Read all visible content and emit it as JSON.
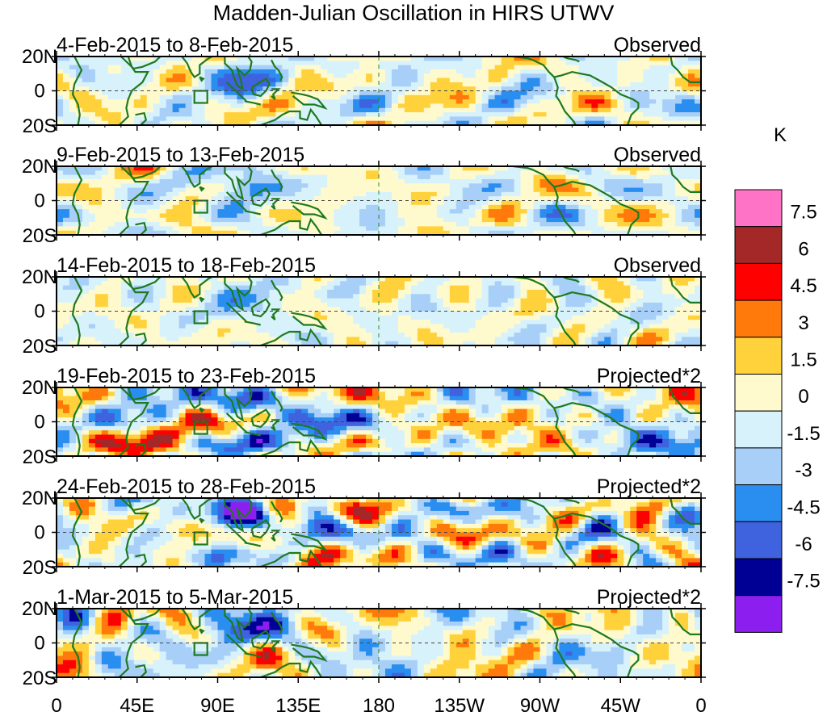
{
  "chart_data": {
    "type": "heatmap",
    "title": "Madden-Julian Oscillation in HIRS UTWV",
    "colorbar": {
      "units": "K",
      "levels": [
        "7.5",
        "6",
        "4.5",
        "3",
        "1.5",
        "0",
        "-1.5",
        "-3",
        "-4.5",
        "-6",
        "-7.5"
      ],
      "colors": [
        "#ff73c7",
        "#a52828",
        "#ff0000",
        "#ff7a0a",
        "#ffd23c",
        "#fffacd",
        "#d8f2fb",
        "#a8cff7",
        "#2a8ef0",
        "#3f62de",
        "#000095",
        "#8c1ef0"
      ]
    },
    "x_ticks": [
      "0",
      "45E",
      "90E",
      "135E",
      "180",
      "135W",
      "90W",
      "45W",
      "0"
    ],
    "y_ticks": [
      "20N",
      "0",
      "20S"
    ],
    "xlim": [
      0,
      360
    ],
    "ylim": [
      -20,
      20
    ],
    "panels": [
      {
        "date_range": "4-Feb-2015 to 8-Feb-2015",
        "label": "Observed",
        "scale": 0.9,
        "seed": 3
      },
      {
        "date_range": "9-Feb-2015 to 13-Feb-2015",
        "label": "Observed",
        "scale": 0.8,
        "seed": 7
      },
      {
        "date_range": "14-Feb-2015 to 18-Feb-2015",
        "label": "Observed",
        "scale": 0.7,
        "seed": 11
      },
      {
        "date_range": "19-Feb-2015 to 23-Feb-2015",
        "label": "Projected*2",
        "scale": 1.3,
        "seed": 17
      },
      {
        "date_range": "24-Feb-2015 to 28-Feb-2015",
        "label": "Projected*2",
        "scale": 1.25,
        "seed": 23
      },
      {
        "date_range": "1-Mar-2015 to 5-Mar-2015",
        "label": "Projected*2",
        "scale": 1.2,
        "seed": 29
      }
    ]
  }
}
